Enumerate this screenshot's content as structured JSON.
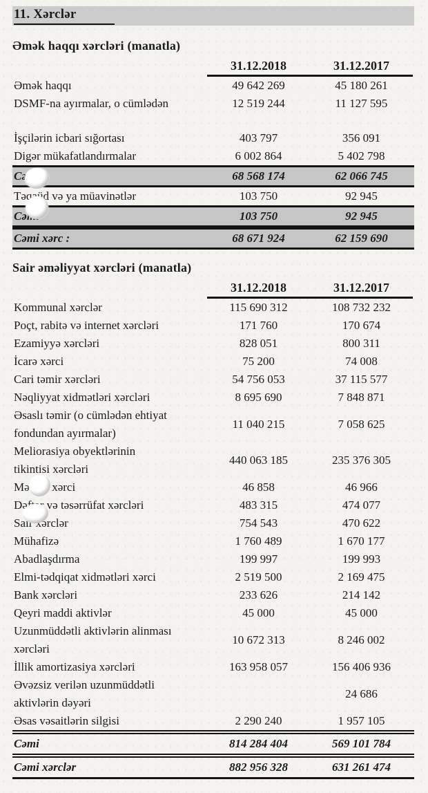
{
  "document": {
    "section_title": "11. Xərclər",
    "colors": {
      "paper": "#f4f3f0",
      "ink": "#1b1b1b",
      "title_bar_gray": "#cdcdcd",
      "total_row_gray": "#c6c6c6"
    }
  },
  "salary_table": {
    "title": "Əmək haqqı xərcləri (manatla)",
    "columns": [
      "31.12.2018",
      "31.12.2017"
    ],
    "rows": [
      {
        "label": "Əmək haqqı",
        "y2018": "49 642 269",
        "y2017": "45 180 261",
        "style": "normal"
      },
      {
        "label": "DSMF-na ayırmalar, o cümlədən",
        "y2018": "12 519 244",
        "y2017": "11 127 595",
        "style": "normal"
      },
      {
        "label": "",
        "y2018": "",
        "y2017": "",
        "style": "spacer"
      },
      {
        "label": "İşçilərin icbari sığortası",
        "y2018": "403 797",
        "y2017": "356 091",
        "style": "normal"
      },
      {
        "label": "Digər mükafatlandırmalar",
        "y2018": "6 002 864",
        "y2017": "5 402 798",
        "style": "normal"
      },
      {
        "label": "Cəmi",
        "y2018": "68 568 174",
        "y2017": "62 066 745",
        "style": "total_gray"
      },
      {
        "label": "Təqaüd və ya müavinətlər",
        "y2018": "103 750",
        "y2017": "92 945",
        "style": "normal"
      },
      {
        "label": "Cəmi",
        "y2018": "103 750",
        "y2017": "92 945",
        "style": "total_gray"
      },
      {
        "label": "Cəmi xərc :",
        "y2018": "68 671 924",
        "y2017": "62 159 690",
        "style": "total_gray"
      }
    ]
  },
  "operating_table": {
    "title": "Sair əməliyyat xərcləri (manatla)",
    "columns": [
      "31.12.2018",
      "31.12.2017"
    ],
    "rows": [
      {
        "label": "Kommunal xərclər",
        "y2018": "115 690 312",
        "y2017": "108 732 232",
        "style": "normal"
      },
      {
        "label": "Poçt, rabitə və internet xərcləri",
        "y2018": "171 760",
        "y2017": "170 674",
        "style": "normal"
      },
      {
        "label": "Ezamiyyə xərcləri",
        "y2018": "828 051",
        "y2017": "800 311",
        "style": "normal"
      },
      {
        "label": "İcarə xərci",
        "y2018": "75 200",
        "y2017": "74 008",
        "style": "normal"
      },
      {
        "label": "Cari təmir xərcləri",
        "y2018": "54 756 053",
        "y2017": "37 115 577",
        "style": "normal"
      },
      {
        "label": "Nəqliyyat xidmətləri xərcləri",
        "y2018": "8 695 690",
        "y2017": "7 848 871",
        "style": "normal"
      },
      {
        "label": "Əsaslı təmir (o cümlədən ehtiyat\nfondundan ayırmalar)",
        "y2018": "11 040 215",
        "y2017": "7 058 625",
        "style": "normal"
      },
      {
        "label": "Meliorasiya obyektlərinin\ntikintisi xərcləri",
        "y2018": "440 063 185",
        "y2017": "235 376 305",
        "style": "normal"
      },
      {
        "label": "Mətbəə xərci",
        "y2018": "46 858",
        "y2017": "46 966",
        "style": "normal"
      },
      {
        "label": "Dəftər və təsərrüfat xərcləri",
        "y2018": "483 315",
        "y2017": "474 077",
        "style": "normal"
      },
      {
        "label": "Sair xərclər",
        "y2018": "754 543",
        "y2017": "470 622",
        "style": "normal"
      },
      {
        "label": "Mühafizə",
        "y2018": "1 760 489",
        "y2017": "1 670 177",
        "style": "normal"
      },
      {
        "label": "Abadlaşdırma",
        "y2018": "199 997",
        "y2017": "199 993",
        "style": "normal"
      },
      {
        "label": "Elmi-tədqiqat xidmətləri  xərci",
        "y2018": "2 519 500",
        "y2017": "2 169 475",
        "style": "normal"
      },
      {
        "label": "Bank xərcləri",
        "y2018": "233 626",
        "y2017": "214 142",
        "style": "normal"
      },
      {
        "label": "Qeyri maddi aktivlər",
        "y2018": "45 000",
        "y2017": "45 000",
        "style": "normal"
      },
      {
        "label": "Uzunmüddətli aktivlərin alinması\nxərcləri",
        "y2018": "10 672 313",
        "y2017": "8 246 002",
        "style": "normal"
      },
      {
        "label": "İllik amortizasiya xərcləri",
        "y2018": "163 958 057",
        "y2017": "156 406 936",
        "style": "normal"
      },
      {
        "label": "Əvəzsiz verilən uzunmüddətli\naktivlərin dəyəri",
        "y2018": "",
        "y2017": "24 686",
        "style": "normal"
      },
      {
        "label": "Əsas vəsaitlərin silgisi",
        "y2018": "2 290 240",
        "y2017": "1 957 105",
        "style": "normal"
      },
      {
        "label": "Cəmi",
        "y2018": "814 284 404",
        "y2017": "569 101 784",
        "style": "total_plain"
      },
      {
        "label": "Cəmi xərclər",
        "y2018": "882 956 328",
        "y2017": "631 261 474",
        "style": "total_plain"
      }
    ]
  }
}
